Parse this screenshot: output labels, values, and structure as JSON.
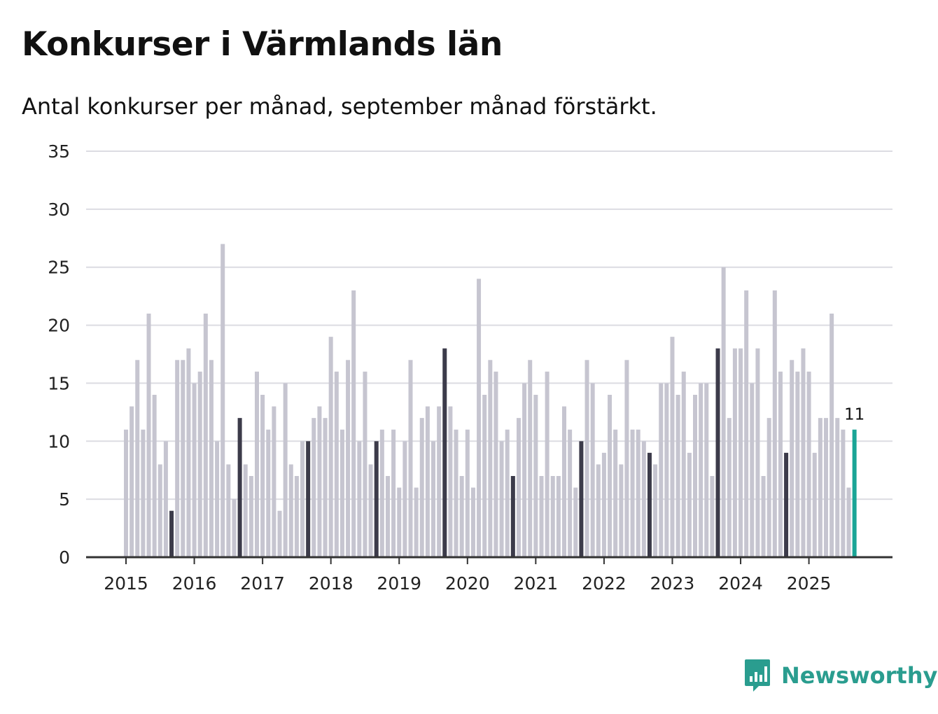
{
  "header": {
    "title": "Konkurser i Värmlands län",
    "subtitle": "Antal konkurser per månad, september månad förstärkt."
  },
  "brand": {
    "name": "Newsworthy",
    "color": "#2a9d8f"
  },
  "colors": {
    "bar_default": "#c6c5d0",
    "bar_highlight": "#3c3b4a",
    "bar_latest": "#1aa596",
    "gridline": "#dcdce2",
    "axis": "#333333"
  },
  "chart_data": {
    "type": "bar",
    "title": "Konkurser i Värmlands län",
    "subtitle": "Antal konkurser per månad, september månad förstärkt.",
    "xlabel": "",
    "ylabel": "",
    "ylim": [
      0,
      35
    ],
    "yticks": [
      0,
      5,
      10,
      15,
      20,
      25,
      30,
      35
    ],
    "xticks": [
      "2015",
      "2016",
      "2017",
      "2018",
      "2019",
      "2020",
      "2021",
      "2022",
      "2023",
      "2024",
      "2025"
    ],
    "grid": true,
    "start_month": "2015-01",
    "highlight": "september",
    "latest_label": "11",
    "values": [
      11,
      13,
      17,
      11,
      21,
      14,
      8,
      10,
      4,
      17,
      17,
      18,
      15,
      16,
      21,
      17,
      10,
      27,
      8,
      5,
      12,
      8,
      7,
      16,
      14,
      11,
      13,
      4,
      15,
      8,
      7,
      10,
      10,
      12,
      13,
      12,
      19,
      16,
      11,
      17,
      23,
      10,
      16,
      8,
      10,
      11,
      7,
      11,
      6,
      10,
      17,
      6,
      12,
      13,
      10,
      13,
      18,
      13,
      11,
      7,
      11,
      6,
      24,
      14,
      17,
      16,
      10,
      11,
      7,
      12,
      15,
      17,
      14,
      7,
      16,
      7,
      7,
      13,
      11,
      6,
      10,
      17,
      15,
      8,
      9,
      14,
      11,
      8,
      17,
      11,
      11,
      10,
      9,
      8,
      15,
      15,
      19,
      14,
      16,
      9,
      14,
      15,
      15,
      7,
      18,
      25,
      12,
      18,
      18,
      23,
      15,
      18,
      7,
      12,
      23,
      16,
      9,
      17,
      16,
      18,
      16,
      9,
      12,
      12,
      21,
      12,
      11,
      6,
      11
    ]
  }
}
